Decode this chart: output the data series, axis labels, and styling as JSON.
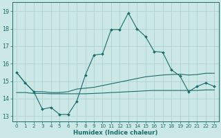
{
  "xlabel": "Humidex (Indice chaleur)",
  "bg_color": "#cce8e6",
  "grid_color": "#a8ccca",
  "line_color": "#1a6b6b",
  "x_ticks": [
    0,
    1,
    2,
    3,
    4,
    5,
    6,
    7,
    8,
    9,
    10,
    11,
    12,
    13,
    14,
    15,
    16,
    17,
    18,
    19,
    20,
    21,
    22,
    23
  ],
  "y_ticks": [
    13,
    14,
    15,
    16,
    17,
    18,
    19
  ],
  "ylim": [
    12.7,
    19.5
  ],
  "xlim": [
    -0.5,
    23.5
  ],
  "line1_x": [
    0,
    1,
    2,
    3,
    4,
    5,
    6,
    7,
    8,
    9,
    10,
    11,
    12,
    13,
    14,
    15,
    16,
    17,
    18,
    19,
    20,
    21,
    22,
    23
  ],
  "line1_y": [
    15.5,
    14.9,
    14.4,
    14.4,
    14.35,
    14.35,
    14.4,
    14.55,
    14.6,
    14.65,
    14.75,
    14.85,
    14.95,
    15.05,
    15.15,
    15.25,
    15.3,
    15.35,
    15.38,
    15.4,
    15.35,
    15.38,
    15.45,
    15.45
  ],
  "line2_x": [
    0,
    1,
    2,
    3,
    4,
    5,
    6,
    7,
    8,
    9,
    10,
    11,
    12,
    13,
    14,
    15,
    16,
    17,
    18,
    19,
    20,
    21,
    22,
    23
  ],
  "line2_y": [
    14.35,
    14.35,
    14.3,
    14.3,
    14.28,
    14.28,
    14.28,
    14.28,
    14.28,
    14.3,
    14.32,
    14.35,
    14.37,
    14.4,
    14.42,
    14.45,
    14.47,
    14.47,
    14.47,
    14.47,
    14.47,
    14.47,
    14.5,
    14.5
  ],
  "line3_x": [
    0,
    1,
    2,
    3,
    4,
    5,
    6,
    7,
    8,
    9,
    10,
    11,
    12,
    13,
    14,
    15,
    16,
    17,
    18,
    19,
    20,
    21,
    22,
    23
  ],
  "line3_y": [
    15.5,
    14.9,
    14.4,
    13.4,
    13.5,
    13.1,
    13.1,
    13.85,
    15.35,
    16.5,
    16.55,
    17.95,
    17.95,
    18.9,
    18.0,
    17.55,
    16.7,
    16.65,
    15.65,
    15.3,
    14.4,
    14.7,
    14.9,
    14.7
  ]
}
